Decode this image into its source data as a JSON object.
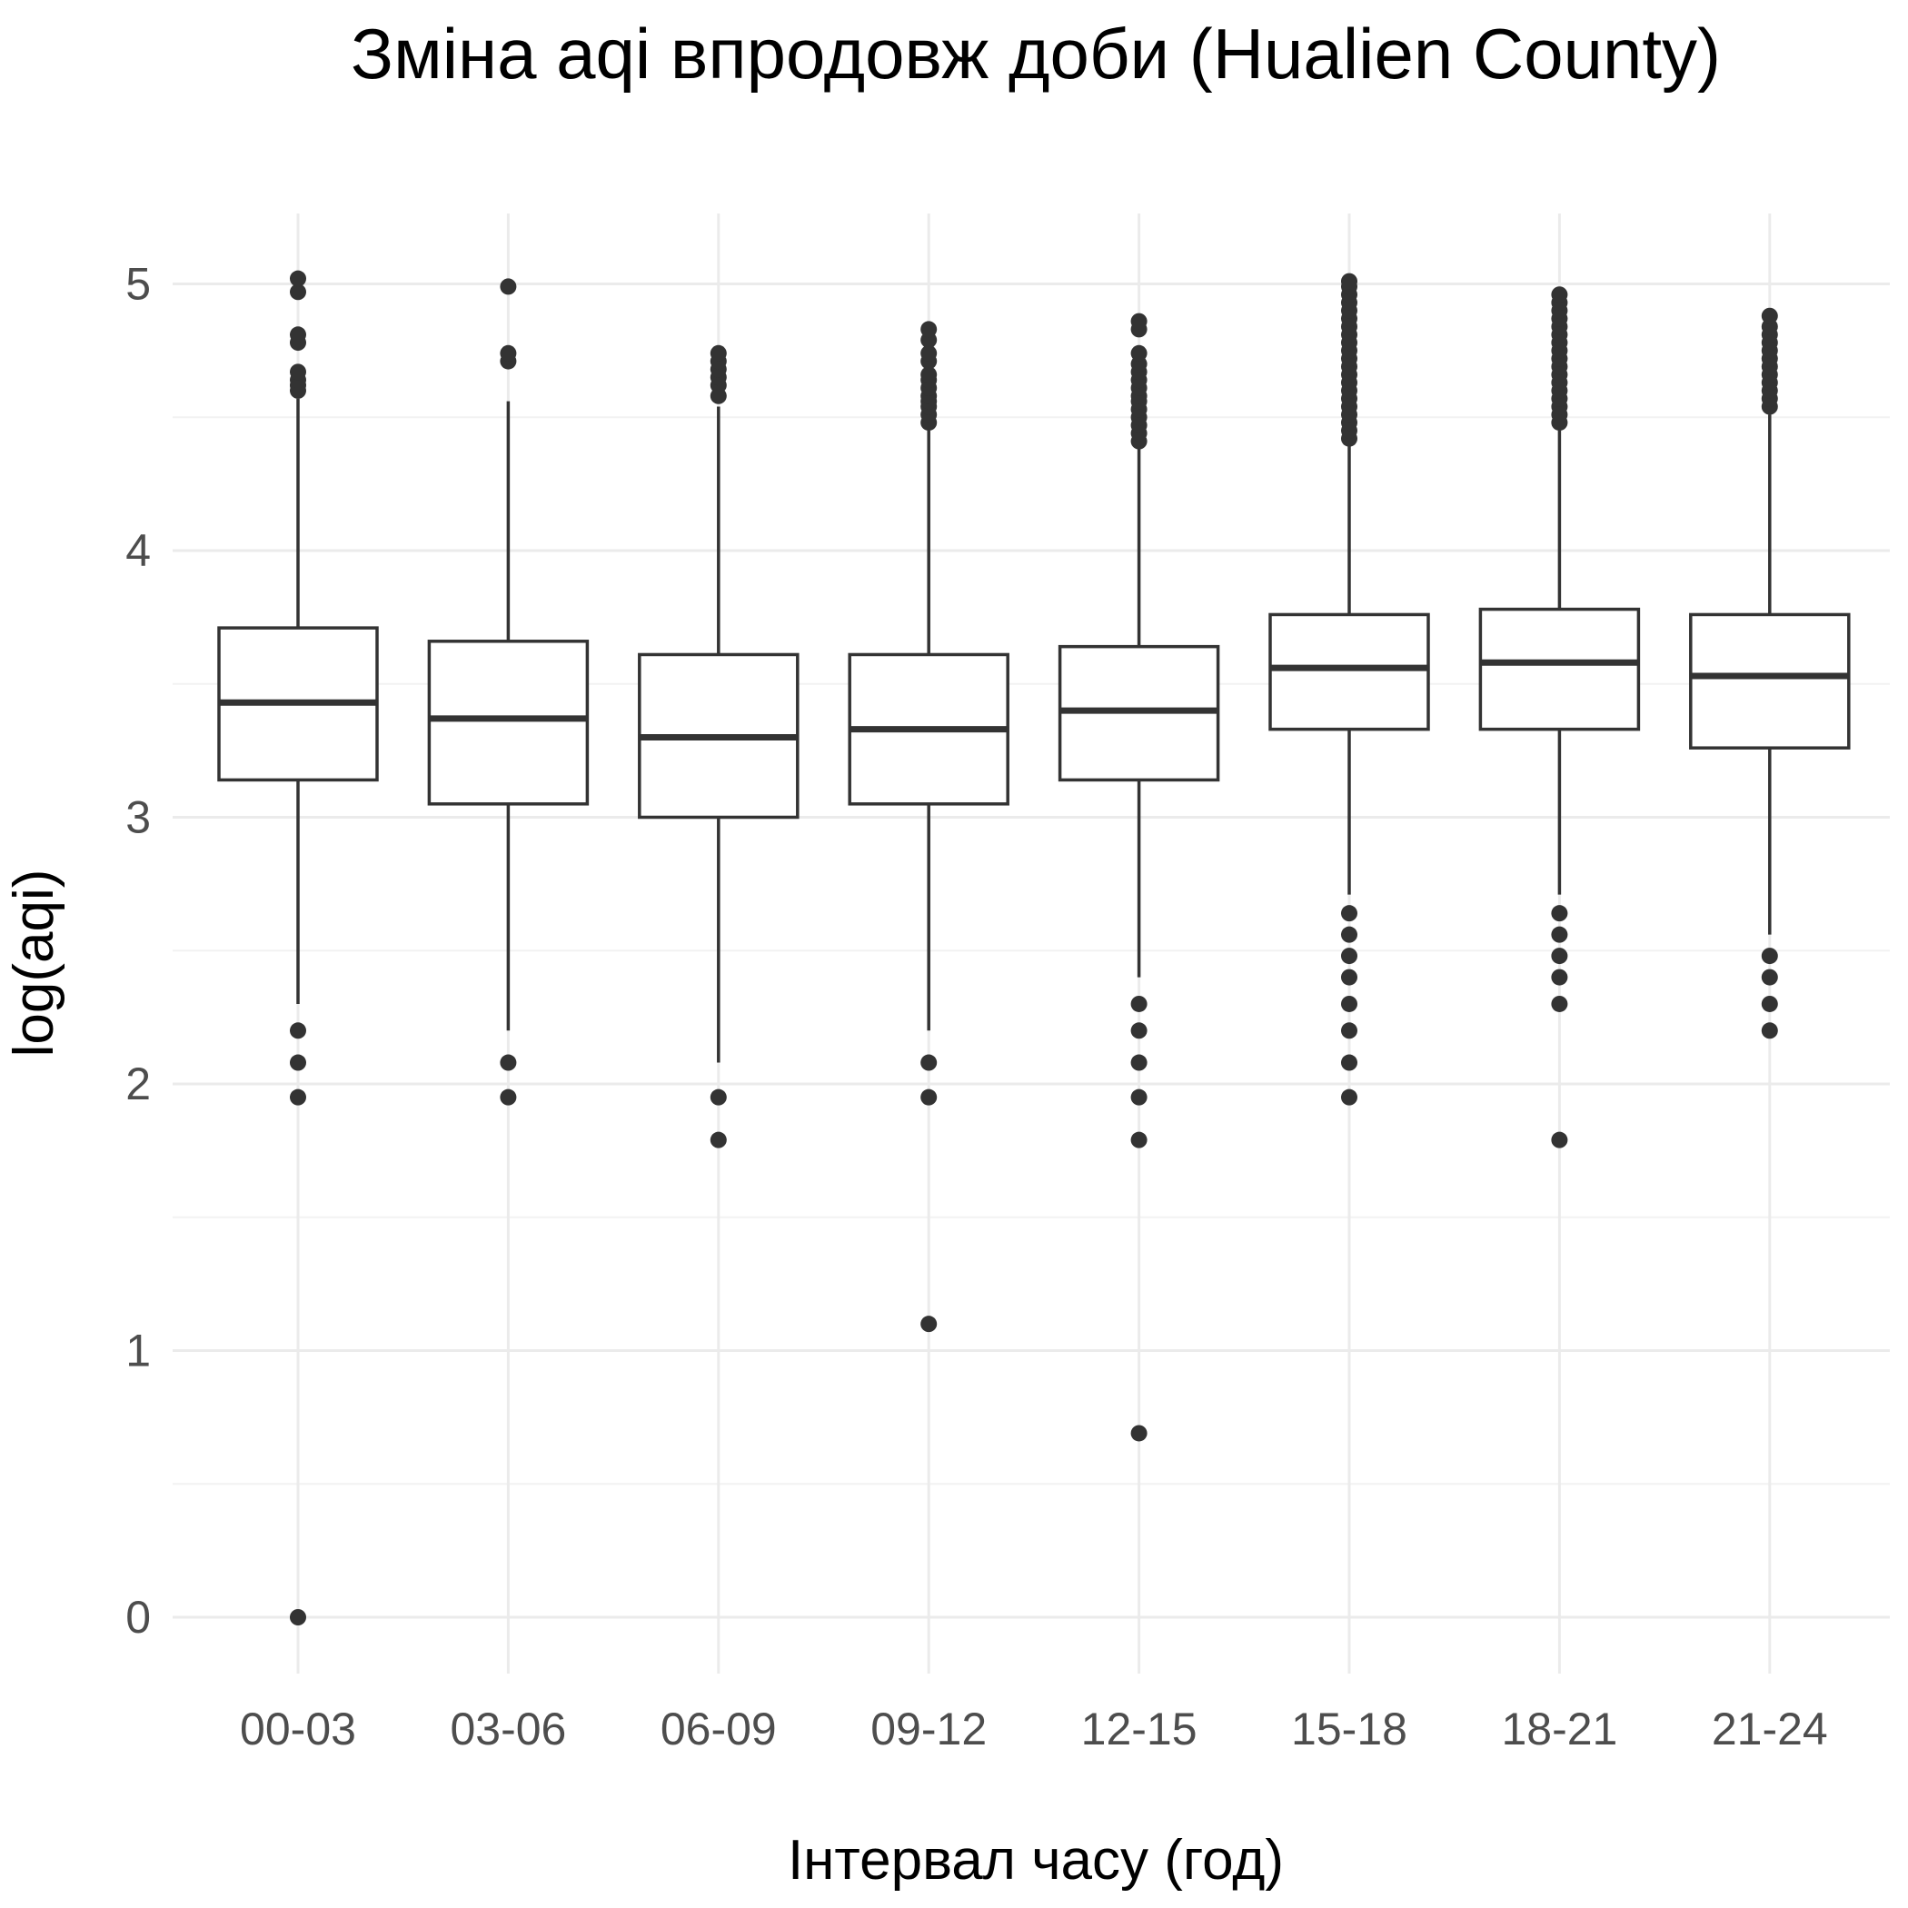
{
  "chart_data": {
    "type": "boxplot",
    "title": "Зміна aqi впродовж доби (Hualien County)",
    "xlabel": "Інтервал часу (год)",
    "ylabel": "log(aqi)",
    "ylim": [
      -0.15,
      5.35
    ],
    "yticks": [
      0,
      1,
      2,
      3,
      4,
      5
    ],
    "ytick_labels": [
      "0",
      "1",
      "2",
      "3",
      "4",
      "5"
    ],
    "grid": true,
    "categories": [
      "00-03",
      "03-06",
      "06-09",
      "09-12",
      "12-15",
      "15-18",
      "18-21",
      "21-24"
    ],
    "boxes": [
      {
        "category": "00-03",
        "lower_whisker": 2.3,
        "q1": 3.14,
        "median": 3.43,
        "q3": 3.71,
        "upper_whisker": 4.57,
        "outliers": [
          0.0,
          1.95,
          2.08,
          2.2,
          4.6,
          4.62,
          4.64,
          4.67,
          4.78,
          4.81,
          4.97,
          5.02
        ]
      },
      {
        "category": "03-06",
        "lower_whisker": 2.2,
        "q1": 3.05,
        "median": 3.37,
        "q3": 3.66,
        "upper_whisker": 4.56,
        "outliers": [
          1.95,
          2.08,
          4.71,
          4.74,
          4.99
        ]
      },
      {
        "category": "06-09",
        "lower_whisker": 2.08,
        "q1": 3.0,
        "median": 3.3,
        "q3": 3.61,
        "upper_whisker": 4.54,
        "outliers": [
          1.79,
          1.95,
          4.58,
          4.62,
          4.65,
          4.68,
          4.71,
          4.74
        ]
      },
      {
        "category": "09-12",
        "lower_whisker": 2.2,
        "q1": 3.05,
        "median": 3.33,
        "q3": 3.61,
        "upper_whisker": 4.45,
        "outliers": [
          1.1,
          1.95,
          2.08,
          4.48,
          4.51,
          4.54,
          4.56,
          4.58,
          4.61,
          4.64,
          4.66,
          4.71,
          4.74,
          4.79,
          4.83
        ]
      },
      {
        "category": "12-15",
        "lower_whisker": 2.4,
        "q1": 3.14,
        "median": 3.4,
        "q3": 3.64,
        "upper_whisker": 4.38,
        "outliers": [
          0.69,
          1.79,
          1.95,
          2.08,
          2.2,
          2.3,
          4.41,
          4.44,
          4.47,
          4.5,
          4.53,
          4.56,
          4.58,
          4.61,
          4.64,
          4.67,
          4.7,
          4.74,
          4.83,
          4.86
        ]
      },
      {
        "category": "15-18",
        "lower_whisker": 2.71,
        "q1": 3.33,
        "median": 3.56,
        "q3": 3.76,
        "upper_whisker": 4.39,
        "outliers": [
          1.95,
          2.08,
          2.2,
          2.3,
          2.4,
          2.48,
          2.56,
          2.64,
          4.42,
          4.45,
          4.48,
          4.51,
          4.54,
          4.57,
          4.6,
          4.63,
          4.66,
          4.69,
          4.72,
          4.75,
          4.78,
          4.81,
          4.84,
          4.87,
          4.9,
          4.93,
          4.96,
          4.99,
          5.01
        ]
      },
      {
        "category": "18-21",
        "lower_whisker": 2.71,
        "q1": 3.33,
        "median": 3.58,
        "q3": 3.78,
        "upper_whisker": 4.45,
        "outliers": [
          1.79,
          2.3,
          2.4,
          2.48,
          2.56,
          2.64,
          4.48,
          4.51,
          4.54,
          4.57,
          4.6,
          4.63,
          4.66,
          4.69,
          4.72,
          4.75,
          4.78,
          4.81,
          4.84,
          4.87,
          4.9,
          4.93,
          4.96
        ]
      },
      {
        "category": "21-24",
        "lower_whisker": 2.56,
        "q1": 3.26,
        "median": 3.53,
        "q3": 3.76,
        "upper_whisker": 4.51,
        "outliers": [
          2.2,
          2.3,
          2.4,
          2.48,
          4.54,
          4.57,
          4.6,
          4.63,
          4.66,
          4.69,
          4.72,
          4.75,
          4.78,
          4.81,
          4.84,
          4.88
        ]
      }
    ]
  }
}
